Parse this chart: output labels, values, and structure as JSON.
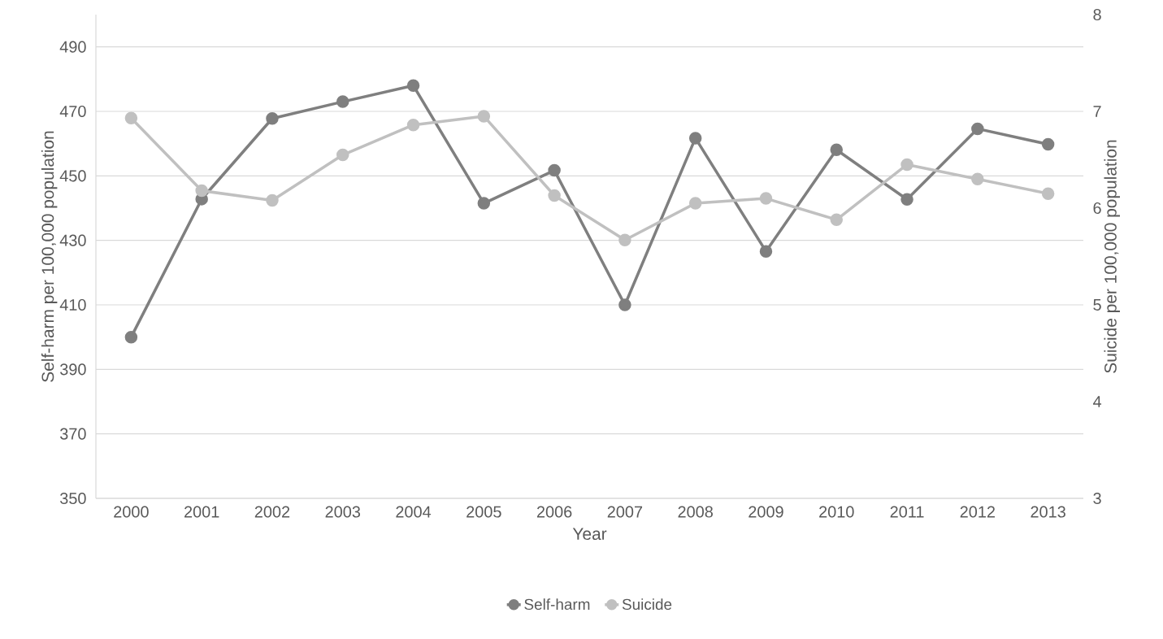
{
  "chart_data": {
    "type": "line",
    "xlabel": "Year",
    "ylabel": "Self-harm per 100,000 population",
    "y2label": "Suicide per 100,000 population",
    "categories": [
      "2000",
      "2001",
      "2002",
      "2003",
      "2004",
      "2005",
      "2006",
      "2007",
      "2008",
      "2009",
      "2010",
      "2011",
      "2012",
      "2013"
    ],
    "series": [
      {
        "name": "Self-harm",
        "color": "#7f7f7f",
        "axis": "y",
        "values": [
          400,
          442.8,
          467.8,
          473.0,
          478.0,
          441.5,
          451.7,
          410,
          461.7,
          426.6,
          458.1,
          442.7,
          464.6,
          459.8
        ]
      },
      {
        "name": "Suicide",
        "color": "#c0c0c0",
        "axis": "y2",
        "values": [
          6.93,
          6.18,
          6.08,
          6.55,
          6.86,
          6.95,
          6.13,
          5.67,
          6.05,
          6.1,
          5.88,
          6.45,
          6.3,
          6.15
        ]
      }
    ],
    "ylim": [
      350,
      500
    ],
    "yticks": [
      350,
      370,
      390,
      410,
      430,
      450,
      470,
      490
    ],
    "y2lim": [
      3,
      8
    ],
    "y2ticks": [
      3,
      4,
      5,
      6,
      7,
      8
    ],
    "grid": "y",
    "legend": "bottom",
    "marker": "circle",
    "line_style": "solid"
  }
}
